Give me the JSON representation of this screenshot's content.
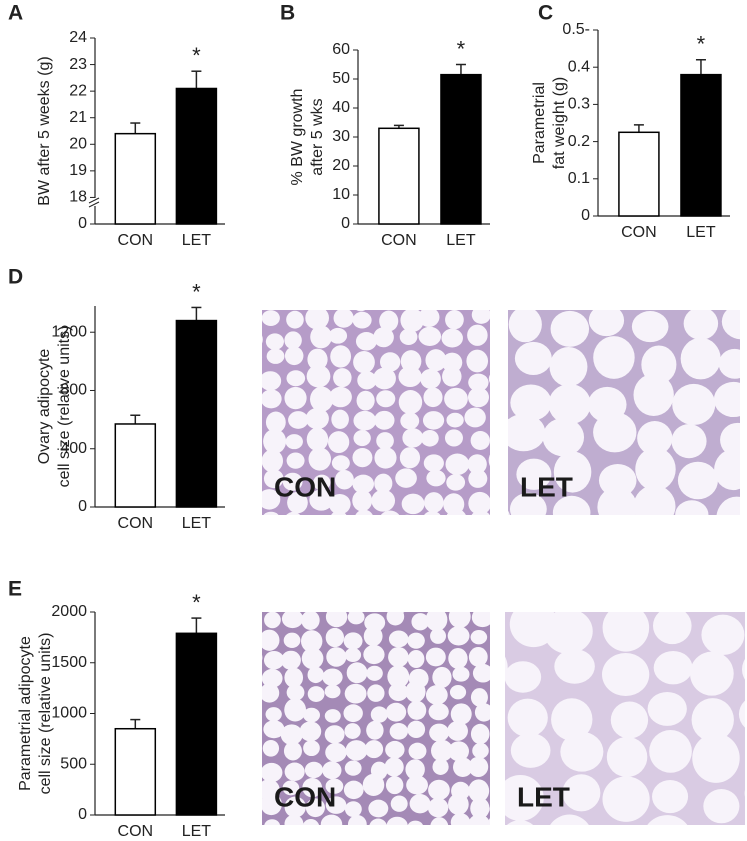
{
  "chart_data": [
    {
      "type": "bar",
      "label": "A",
      "ylabel": [
        "BW after 5 weeks (g)"
      ],
      "categories": [
        "CON",
        "LET"
      ],
      "values": [
        20.4,
        22.1
      ],
      "errors": [
        0.4,
        0.65
      ],
      "colors": [
        "#ffffff",
        "#000000"
      ],
      "ylim": [
        17,
        24
      ],
      "yticks": [
        0,
        18,
        19,
        20,
        21,
        22,
        23,
        24
      ],
      "axis_break": true,
      "annotations": [
        {
          "text": "*",
          "category": "LET"
        }
      ]
    },
    {
      "type": "bar",
      "label": "B",
      "ylabel": [
        "% BW growth",
        "after 5 wks"
      ],
      "categories": [
        "CON",
        "LET"
      ],
      "values": [
        33,
        51.5
      ],
      "errors": [
        1,
        3.5
      ],
      "colors": [
        "#ffffff",
        "#000000"
      ],
      "ylim": [
        0,
        60
      ],
      "yticks": [
        0,
        10,
        20,
        30,
        40,
        50,
        60
      ],
      "annotations": [
        {
          "text": "*",
          "category": "LET"
        }
      ]
    },
    {
      "type": "bar",
      "label": "C",
      "ylabel": [
        "Parametrial",
        "fat weight (g)"
      ],
      "categories": [
        "CON",
        "LET"
      ],
      "values": [
        0.225,
        0.38
      ],
      "errors": [
        0.02,
        0.04
      ],
      "colors": [
        "#ffffff",
        "#000000"
      ],
      "ylim": [
        0,
        0.5
      ],
      "yticks": [
        0,
        0.1,
        0.2,
        0.3,
        0.4,
        {
          "value": 0.5,
          "label": "0.5-"
        }
      ],
      "annotations": [
        {
          "text": "*",
          "category": "LET"
        }
      ]
    },
    {
      "type": "bar",
      "label": "D",
      "ylabel": [
        "Ovary adipocyte",
        "cell size (relative units)"
      ],
      "categories": [
        "CON",
        "LET"
      ],
      "values": [
        570,
        1280
      ],
      "errors": [
        60,
        90
      ],
      "colors": [
        "#ffffff",
        "#000000"
      ],
      "ylim": [
        0,
        1380
      ],
      "yticks": [
        0,
        400,
        800,
        1200
      ],
      "annotations": [
        {
          "text": "*",
          "category": "LET"
        }
      ]
    },
    {
      "type": "bar",
      "label": "E",
      "ylabel": [
        "Parametrial adipocyte",
        "cell size (relative units)"
      ],
      "categories": [
        "CON",
        "LET"
      ],
      "values": [
        850,
        1790
      ],
      "errors": [
        90,
        150
      ],
      "colors": [
        "#ffffff",
        "#000000"
      ],
      "ylim": [
        0,
        2000
      ],
      "yticks": [
        0,
        500,
        1000,
        1500,
        2000
      ],
      "annotations": [
        {
          "text": "*",
          "category": "LET"
        }
      ]
    }
  ],
  "image_labels": [
    "CON",
    "LET",
    "CON",
    "LET"
  ]
}
